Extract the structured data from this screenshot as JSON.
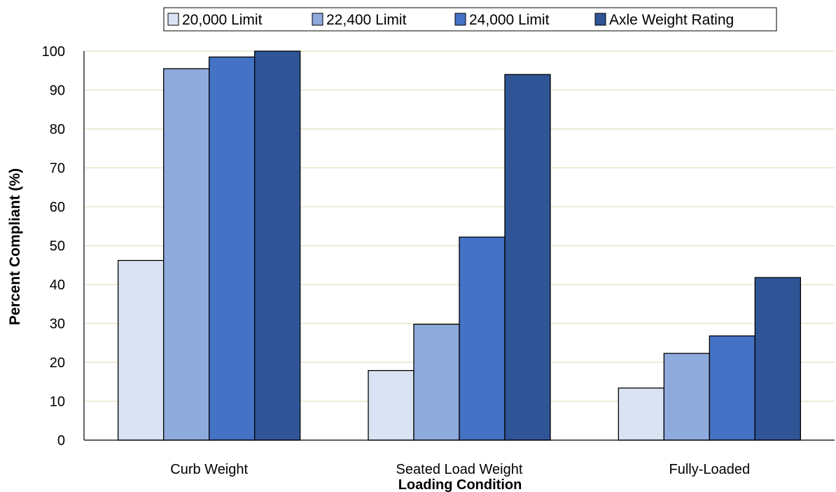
{
  "chart_data": {
    "type": "bar",
    "categories": [
      "Curb Weight",
      "Seated Load Weight",
      "Fully-Loaded"
    ],
    "series": [
      {
        "name": "20,000 Limit",
        "values": [
          46.2,
          17.9,
          13.4
        ],
        "color": "#dae3f3"
      },
      {
        "name": "22,400 Limit",
        "values": [
          95.5,
          29.8,
          22.3
        ],
        "color": "#8faadc"
      },
      {
        "name": "24,000 Limit",
        "values": [
          98.5,
          52.2,
          26.8
        ],
        "color": "#4472c4"
      },
      {
        "name": "Axle Weight Rating",
        "values": [
          100,
          94,
          41.8
        ],
        "color": "#2f5597"
      }
    ],
    "xlabel": "Loading Condition",
    "ylabel": "Percent Compliant (%)",
    "ylim": [
      0,
      100
    ],
    "yticks": [
      0,
      10,
      20,
      30,
      40,
      50,
      60,
      70,
      80,
      90,
      100
    ],
    "grid": true,
    "gridline_color": "#e8e4c8",
    "legend_position": "top"
  }
}
